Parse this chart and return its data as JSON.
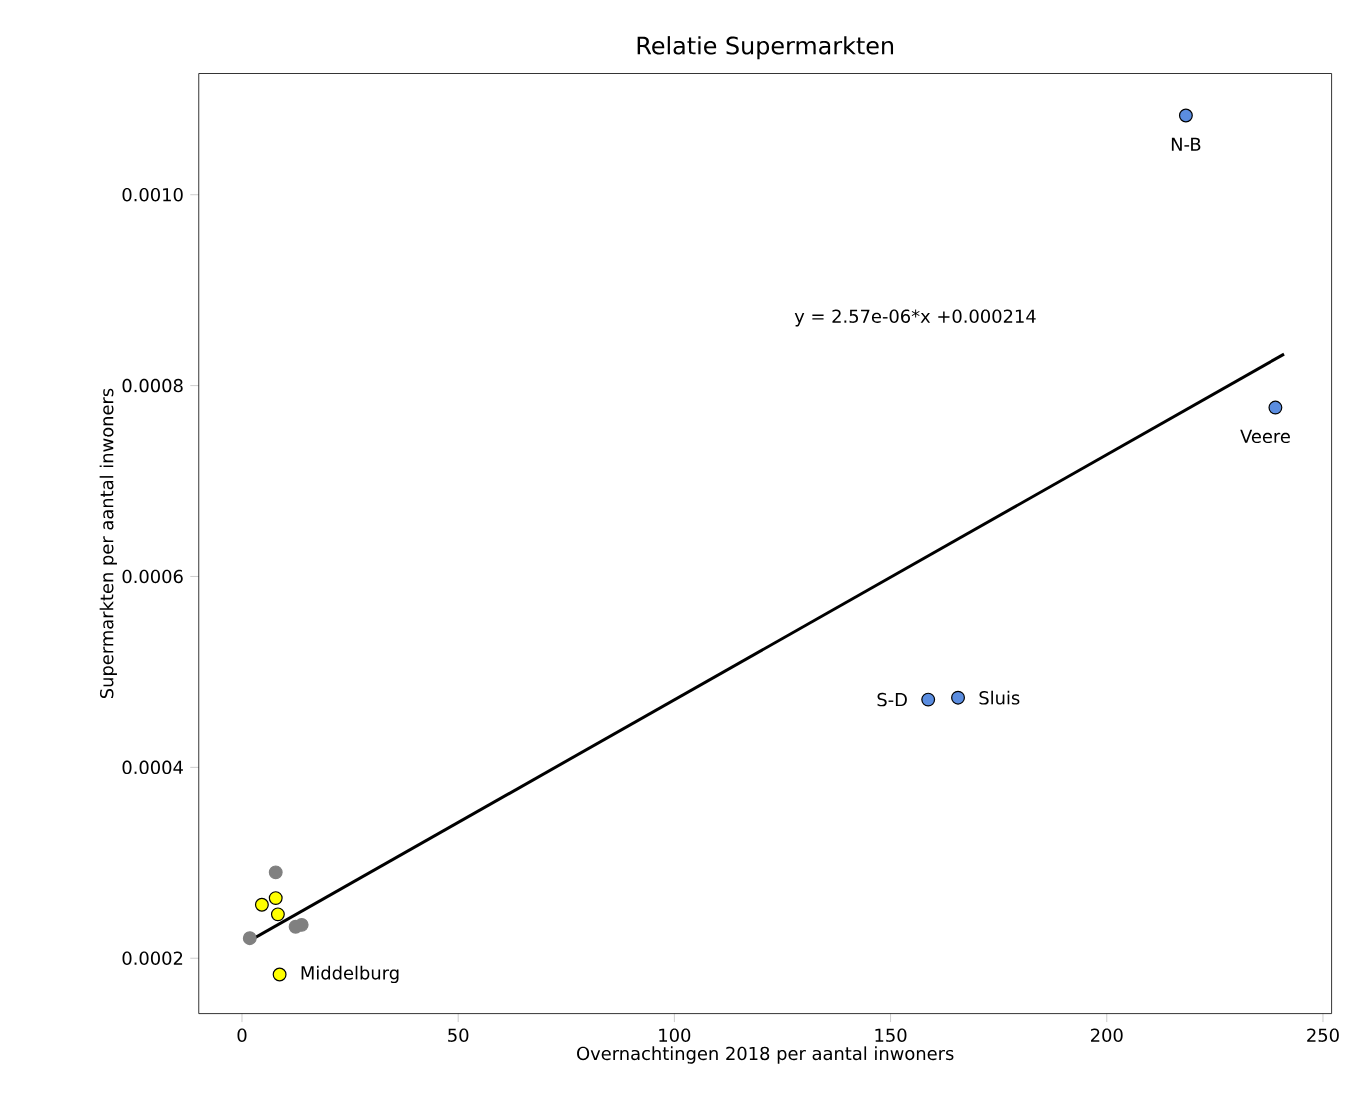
{
  "chart_data": {
    "type": "scatter",
    "title": "Relatie Supermarkten",
    "xlabel": "Overnachtingen 2018 per aantal inwoners",
    "ylabel": "Supermarkten per aantal inwoners",
    "xlim": [
      -10,
      252
    ],
    "ylim": [
      0.000142,
      0.001127
    ],
    "xticks": [
      0,
      50,
      100,
      150,
      200,
      250
    ],
    "yticks": [
      {
        "value": 0.0002,
        "label": "0.0002"
      },
      {
        "value": 0.0004,
        "label": "0.0004"
      },
      {
        "value": 0.0006,
        "label": "0.0006"
      },
      {
        "value": 0.0008,
        "label": "0.0008"
      },
      {
        "value": 0.001,
        "label": "0.0010"
      }
    ],
    "series": [
      {
        "marker": "circle",
        "color": "#808080",
        "x": [
          7.8,
          1.8,
          12.4,
          13.8
        ],
        "values": [
          0.00029,
          0.000221,
          0.000233,
          0.000235
        ]
      },
      {
        "marker": "circle",
        "color": "#ffff00",
        "x": [
          4.6,
          7.8,
          8.3,
          8.7
        ],
        "values": [
          0.000256,
          0.000263,
          0.000246,
          0.000183
        ]
      },
      {
        "marker": "circle",
        "color": "#5b8de0",
        "x": [
          218.3,
          239,
          158.7,
          165.6
        ],
        "values": [
          0.001083,
          0.000777,
          0.000471,
          0.000473
        ]
      },
      {
        "type": "line",
        "marker": "none",
        "color": "#000000",
        "x": [
          2,
          241
        ],
        "values": [
          0.000219,
          0.000833
        ]
      }
    ],
    "annotations": [
      {
        "text": "N-B",
        "x": 218.3,
        "y": 0.001083
      },
      {
        "text": "Veere",
        "x": 239,
        "y": 0.000777
      },
      {
        "text": "S-D",
        "x": 158.7,
        "y": 0.000471
      },
      {
        "text": "Sluis",
        "x": 165.6,
        "y": 0.000473
      },
      {
        "text": "Middelburg",
        "x": 8.7,
        "y": 0.000183
      },
      "y = 2.57e-06*x +0.000214"
    ]
  }
}
